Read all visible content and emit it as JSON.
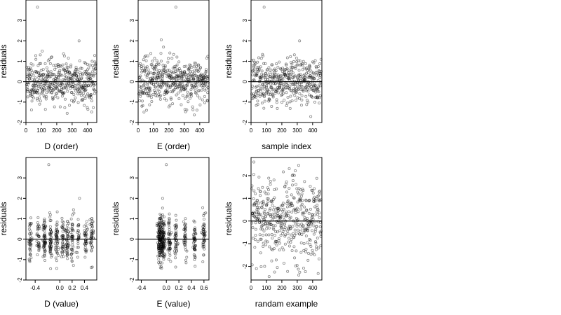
{
  "chart_data": [
    {
      "type": "scatter",
      "xlabel": "D (order)",
      "ylabel": "residuals",
      "xlim": [
        0,
        460
      ],
      "ylim": [
        -2,
        4
      ],
      "xticks": [
        0,
        100,
        200,
        300,
        400
      ],
      "yticks": [
        -2,
        -1,
        0,
        1,
        2,
        3
      ],
      "hline": 0,
      "x_kind": "index",
      "spread": 0.55,
      "seed": 11,
      "n_points": 460,
      "highlight": [
        {
          "x": 75,
          "y": 3.65
        },
        {
          "x": 345,
          "y": 2.0
        }
      ],
      "point_color": "#000000"
    },
    {
      "type": "scatter",
      "xlabel": "E (order)",
      "ylabel": "residuals",
      "xlim": [
        0,
        460
      ],
      "ylim": [
        -2,
        4
      ],
      "xticks": [
        0,
        100,
        200,
        300,
        400
      ],
      "yticks": [
        -2,
        -1,
        0,
        1,
        2,
        3
      ],
      "hline": 0,
      "x_kind": "index",
      "spread": 0.55,
      "seed": 23,
      "n_points": 460,
      "highlight": [
        {
          "x": 245,
          "y": 3.65
        },
        {
          "x": 150,
          "y": 2.05
        }
      ],
      "point_color": "#000000"
    },
    {
      "type": "scatter",
      "xlabel": "sample index",
      "ylabel": "residuals",
      "xlim": [
        0,
        460
      ],
      "ylim": [
        -2,
        4
      ],
      "xticks": [
        0,
        100,
        200,
        300,
        400
      ],
      "yticks": [
        -2,
        -1,
        0,
        1,
        2,
        3
      ],
      "hline": 0,
      "x_kind": "index",
      "spread": 0.55,
      "seed": 37,
      "n_points": 460,
      "highlight": [
        {
          "x": 85,
          "y": 3.65
        },
        {
          "x": 315,
          "y": 2.0
        }
      ],
      "point_color": "#000000"
    },
    {
      "type": "scatter",
      "xlabel": "D (value)",
      "ylabel": "residuals",
      "xlim": [
        -0.55,
        0.6
      ],
      "ylim": [
        -2,
        4
      ],
      "xticks": [
        -0.4,
        0.0,
        0.2,
        0.4
      ],
      "xtick_labels": [
        "-0.4",
        "0.0",
        "0.2",
        "0.4"
      ],
      "yticks": [
        -2,
        -1,
        0,
        1,
        2,
        3
      ],
      "hline": 0,
      "x_kind": "clustered",
      "x_centers": [
        -0.48,
        -0.35,
        -0.25,
        -0.15,
        -0.05,
        0.05,
        0.12,
        0.2,
        0.3,
        0.42,
        0.52
      ],
      "spread": 0.55,
      "seed": 53,
      "n_points": 460,
      "highlight": [
        {
          "x": -0.18,
          "y": 3.65
        },
        {
          "x": 0.32,
          "y": 2.0
        }
      ],
      "point_color": "#000000"
    },
    {
      "type": "scatter",
      "xlabel": "E (value)",
      "ylabel": "residuals",
      "xlim": [
        -0.45,
        0.68
      ],
      "ylim": [
        -2,
        4
      ],
      "xticks": [
        -0.4,
        0.0,
        0.2,
        0.4,
        0.6
      ],
      "xtick_labels": [
        "-0.4",
        "0.0",
        "0.2",
        "0.4",
        "0.6"
      ],
      "yticks": [
        -2,
        -1,
        0,
        1,
        2,
        3
      ],
      "hline": 0,
      "x_kind": "clustered",
      "x_centers": [
        -0.12,
        -0.1,
        -0.08,
        -0.06,
        -0.04,
        0.05,
        0.15,
        0.3,
        0.45,
        0.6
      ],
      "spread": 0.55,
      "seed": 71,
      "n_points": 460,
      "highlight": [
        {
          "x": 0.0,
          "y": 3.65
        },
        {
          "x": -0.06,
          "y": 2.0
        }
      ],
      "point_color": "#000000"
    },
    {
      "type": "scatter",
      "xlabel": "randam example",
      "ylabel": "residuals",
      "xlim": [
        0,
        460
      ],
      "ylim": [
        -2.6,
        2.8
      ],
      "xticks": [
        0,
        100,
        200,
        300,
        400
      ],
      "yticks": [
        -2,
        -1,
        0,
        1,
        2
      ],
      "hline": 0,
      "x_kind": "index",
      "spread": 1.0,
      "seed": 97,
      "n_points": 460,
      "highlight": [],
      "point_color": "#000000"
    }
  ]
}
